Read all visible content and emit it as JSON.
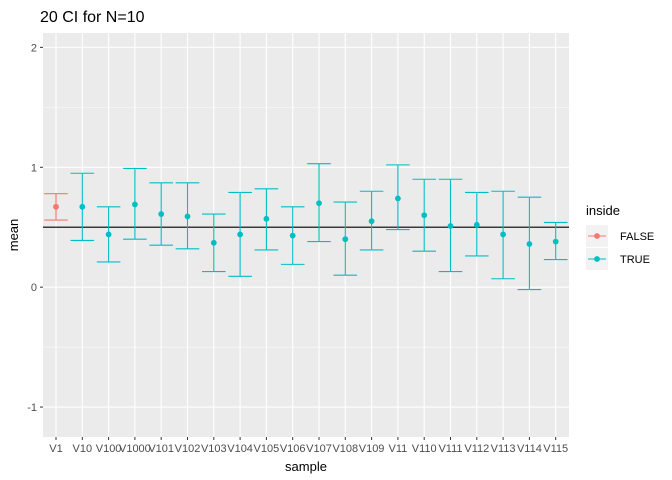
{
  "chart_data": {
    "type": "errorbar",
    "title": "20 CI for N=10",
    "xlabel": "sample",
    "ylabel": "mean",
    "ylim": [
      -1.25,
      2.12
    ],
    "y_ticks": [
      -1,
      0,
      1,
      2
    ],
    "y_tick_labels": [
      "-1",
      "0",
      "1",
      "2"
    ],
    "reference_line": 0.5,
    "grid": true,
    "legend": {
      "title": "inside",
      "position": "right",
      "entries": [
        {
          "label": "FALSE",
          "color": "#F8766D"
        },
        {
          "label": "TRUE",
          "color": "#00BFC4"
        }
      ]
    },
    "categories": [
      "V1",
      "V10",
      "V100",
      "V1000",
      "V101",
      "V102",
      "V103",
      "V104",
      "V105",
      "V106",
      "V107",
      "V108",
      "V109",
      "V11",
      "V110",
      "V111",
      "V112",
      "V113",
      "V114",
      "V115"
    ],
    "mean": [
      0.67,
      0.67,
      0.44,
      0.69,
      0.61,
      0.59,
      0.37,
      0.44,
      0.57,
      0.43,
      0.7,
      0.4,
      0.55,
      0.74,
      0.6,
      0.51,
      0.52,
      0.44,
      0.36,
      0.38
    ],
    "lower": [
      0.56,
      0.39,
      0.21,
      0.4,
      0.35,
      0.32,
      0.13,
      0.09,
      0.31,
      0.19,
      0.38,
      0.1,
      0.31,
      0.48,
      0.3,
      0.13,
      0.26,
      0.07,
      -0.02,
      0.23
    ],
    "upper": [
      0.78,
      0.95,
      0.67,
      0.99,
      0.87,
      0.87,
      0.61,
      0.79,
      0.82,
      0.67,
      1.03,
      0.71,
      0.8,
      1.02,
      0.9,
      0.9,
      0.79,
      0.8,
      0.75,
      0.54
    ],
    "inside": [
      "FALSE",
      "TRUE",
      "TRUE",
      "TRUE",
      "TRUE",
      "TRUE",
      "TRUE",
      "TRUE",
      "TRUE",
      "TRUE",
      "TRUE",
      "TRUE",
      "TRUE",
      "TRUE",
      "TRUE",
      "TRUE",
      "TRUE",
      "TRUE",
      "TRUE",
      "TRUE"
    ]
  }
}
